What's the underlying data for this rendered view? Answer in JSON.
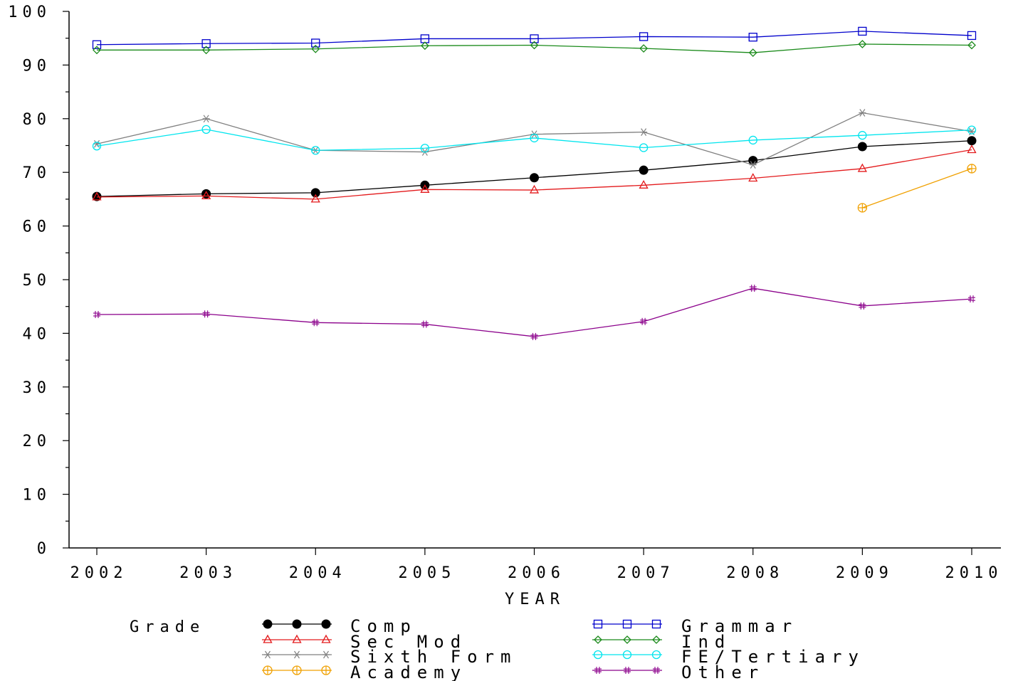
{
  "chart_data": {
    "type": "line",
    "title": "",
    "xlabel": "YEAR",
    "ylabel": "",
    "x": [
      2002,
      2003,
      2004,
      2005,
      2006,
      2007,
      2008,
      2009,
      2010
    ],
    "ylim": [
      0,
      100
    ],
    "yticks": [
      0,
      10,
      20,
      30,
      40,
      50,
      60,
      70,
      80,
      90,
      100
    ],
    "grid": false,
    "legend_title": "Grade",
    "legend_position": "bottom",
    "series": [
      {
        "name": "Comp",
        "color": "#000000",
        "marker": "filled-circle",
        "values": [
          65.5,
          66.0,
          66.2,
          67.6,
          69.0,
          70.4,
          72.2,
          74.8,
          75.9
        ]
      },
      {
        "name": "Grammar",
        "color": "#0000cc",
        "marker": "square",
        "values": [
          93.8,
          94.0,
          94.1,
          94.9,
          94.9,
          95.3,
          95.2,
          96.3,
          95.5
        ]
      },
      {
        "name": "Sec Mod",
        "color": "#e31a1c",
        "marker": "triangle",
        "values": [
          65.4,
          65.6,
          65.0,
          66.8,
          66.7,
          67.6,
          68.9,
          70.7,
          74.2
        ]
      },
      {
        "name": "Ind",
        "color": "#1a8a1a",
        "marker": "diamond",
        "values": [
          92.8,
          92.8,
          93.0,
          93.6,
          93.7,
          93.1,
          92.3,
          93.9,
          93.7
        ]
      },
      {
        "name": "Sixth Form",
        "color": "#808080",
        "marker": "star",
        "values": [
          75.3,
          80.0,
          74.1,
          73.8,
          77.1,
          77.5,
          71.4,
          81.1,
          77.6
        ]
      },
      {
        "name": "FE/Tertiary",
        "color": "#00e5ee",
        "marker": "circle",
        "values": [
          74.9,
          78.0,
          74.1,
          74.5,
          76.4,
          74.6,
          76.0,
          76.9,
          77.9
        ]
      },
      {
        "name": "Academy",
        "color": "#f0a000",
        "marker": "circle-plus",
        "values": [
          null,
          null,
          null,
          null,
          null,
          null,
          null,
          63.4,
          70.7
        ]
      },
      {
        "name": "Other",
        "color": "#8b008b",
        "marker": "hash",
        "values": [
          43.5,
          43.6,
          42.0,
          41.7,
          39.4,
          42.2,
          48.4,
          45.1,
          46.4
        ]
      }
    ]
  }
}
